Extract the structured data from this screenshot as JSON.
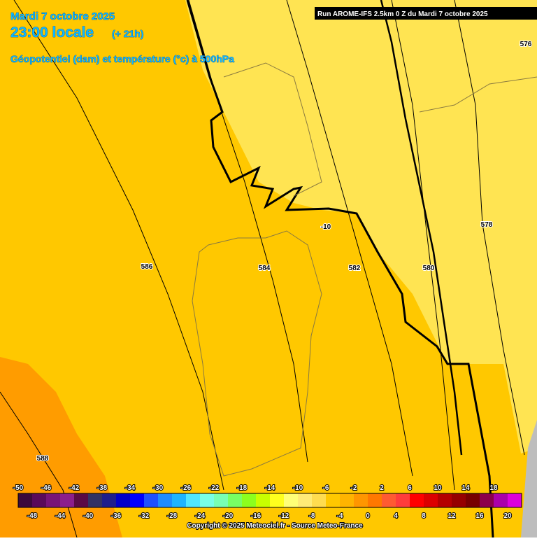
{
  "header": {
    "date": "Mardi 7 octobre 2025",
    "time": "23:00 locale",
    "lead": "(+ 21h)",
    "field": "Géopotentiel (dam) et température (°c) à 500hPa"
  },
  "run_label": "Run AROME-IFS 2.5km 0 Z du Mardi 7 octobre 2025",
  "contour_labels": [
    {
      "text": "586"
    },
    {
      "text": "584"
    },
    {
      "text": "582"
    },
    {
      "text": "580"
    },
    {
      "text": "578"
    },
    {
      "text": "588"
    },
    {
      "text": "576"
    },
    {
      "text": "-10"
    }
  ],
  "colorbar": {
    "labels_top": [
      -50,
      -46,
      -42,
      -38,
      -34,
      -30,
      -26,
      -22,
      -18,
      -14,
      -10,
      -6,
      -2,
      2,
      6,
      10,
      14,
      18
    ],
    "labels_bottom": [
      -48,
      -44,
      -40,
      -36,
      -32,
      -28,
      -24,
      -20,
      -16,
      -12,
      -8,
      -4,
      0,
      4,
      8,
      12,
      16,
      20
    ],
    "colors": [
      "#3c0a3c",
      "#5a0a5a",
      "#781478",
      "#8c1e8c",
      "#5a0a46",
      "#323264",
      "#1e1e8c",
      "#0000c8",
      "#0000ff",
      "#1e50ff",
      "#1e8cff",
      "#1eb4ff",
      "#50e6ff",
      "#78ffe6",
      "#78ffb4",
      "#78ff64",
      "#8cff1e",
      "#c8ff00",
      "#ffff1e",
      "#ffff78",
      "#ffeb78",
      "#ffdc50",
      "#ffc800",
      "#ffb400",
      "#ff9600",
      "#ff7800",
      "#ff5a32",
      "#ff3c3c",
      "#ff0000",
      "#dc0000",
      "#b40000",
      "#960000",
      "#780000",
      "#8c004b",
      "#aa00aa",
      "#dc00dc"
    ]
  },
  "copyright": "Copyright © 2025 Meteociel.fr - Source Meteo-France"
}
